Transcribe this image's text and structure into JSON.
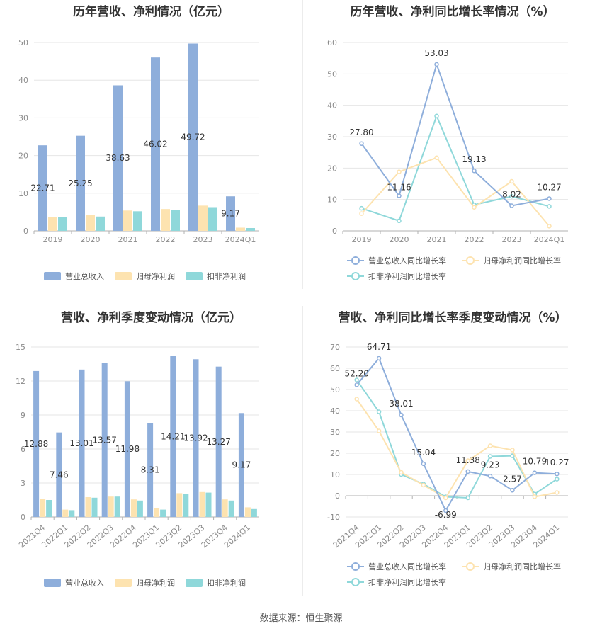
{
  "colors": {
    "revenue": "#8eaedb",
    "net_profit": "#fde3b0",
    "deducted": "#8fd8da",
    "revenue_line": "#8eaedb",
    "grid": "#e6e6e6",
    "axis": "#b0b0b0"
  },
  "source_text": "数据来源：恒生聚源",
  "chart_data": [
    {
      "type": "bar",
      "title": "历年营收、净利情况（亿元）",
      "categories": [
        "2019",
        "2020",
        "2021",
        "2022",
        "2023",
        "2024Q1"
      ],
      "ylim": [
        0,
        50
      ],
      "yticks": [
        "0",
        "10",
        "20",
        "30",
        "40",
        "50"
      ],
      "series": [
        {
          "name": "营业总收入",
          "values": [
            22.71,
            25.25,
            38.63,
            46.02,
            49.72,
            9.17
          ]
        },
        {
          "name": "归母净利润",
          "values": [
            3.7,
            4.3,
            5.4,
            5.8,
            6.7,
            0.85
          ]
        },
        {
          "name": "扣非净利润",
          "values": [
            3.7,
            3.8,
            5.2,
            5.6,
            6.3,
            0.75
          ]
        }
      ],
      "data_labels": [
        "22.71",
        "25.25",
        "38.63",
        "46.02",
        "49.72",
        "9.17"
      ],
      "legend": "bottom"
    },
    {
      "type": "line",
      "title": "历年营收、净利同比增长率情况（%）",
      "categories": [
        "2019",
        "2020",
        "2021",
        "2022",
        "2023",
        "2024Q1"
      ],
      "ylim": [
        0,
        60
      ],
      "yticks": [
        "0",
        "10",
        "20",
        "30",
        "40",
        "50",
        "60"
      ],
      "series": [
        {
          "name": "营业总收入同比增长率",
          "values": [
            27.8,
            11.16,
            53.03,
            19.13,
            8.02,
            10.27
          ]
        },
        {
          "name": "归母净利润同比增长率",
          "values": [
            5.5,
            18.8,
            23.3,
            7.5,
            15.8,
            1.5
          ]
        },
        {
          "name": "扣非净利润同比增长率",
          "values": [
            7.2,
            3.2,
            36.6,
            8.3,
            11.0,
            7.8
          ]
        }
      ],
      "data_labels": [
        "27.80",
        "11.16",
        "53.03",
        "19.13",
        "8.02",
        "10.27"
      ],
      "legend": "bottom"
    },
    {
      "type": "bar",
      "title": "营收、净利季度变动情况（亿元）",
      "categories": [
        "2021Q4",
        "2022Q1",
        "2022Q2",
        "2022Q3",
        "2022Q4",
        "2023Q1",
        "2023Q2",
        "2023Q3",
        "2023Q4",
        "2024Q1"
      ],
      "ylim": [
        0,
        15
      ],
      "yticks": [
        "0",
        "3",
        "6",
        "9",
        "12",
        "15"
      ],
      "series": [
        {
          "name": "营业总收入",
          "values": [
            12.88,
            7.46,
            13.01,
            13.57,
            11.98,
            8.31,
            14.21,
            13.92,
            13.27,
            9.17
          ]
        },
        {
          "name": "归母净利润",
          "values": [
            1.6,
            0.65,
            1.75,
            1.8,
            1.55,
            0.8,
            2.1,
            2.2,
            1.55,
            0.85
          ]
        },
        {
          "name": "扣非净利润",
          "values": [
            1.5,
            0.6,
            1.7,
            1.8,
            1.45,
            0.65,
            2.05,
            2.15,
            1.45,
            0.7
          ]
        }
      ],
      "data_labels": [
        "12.88",
        "7.46",
        "13.01",
        "13.57",
        "11.98",
        "8.31",
        "14.21",
        "13.92",
        "13.27",
        "9.17"
      ],
      "legend": "bottom"
    },
    {
      "type": "line",
      "title": "营收、净利同比增长率季度变动情况（%）",
      "categories": [
        "2021Q4",
        "2022Q1",
        "2022Q2",
        "2022Q3",
        "2022Q4",
        "2023Q1",
        "2023Q2",
        "2023Q3",
        "2023Q4",
        "2024Q1"
      ],
      "ylim": [
        -10,
        70
      ],
      "yticks": [
        "-10",
        "0",
        "10",
        "20",
        "30",
        "40",
        "50",
        "60",
        "70"
      ],
      "series": [
        {
          "name": "营业总收入同比增长率",
          "values": [
            52.2,
            64.71,
            38.01,
            15.04,
            -6.99,
            11.38,
            9.23,
            2.57,
            10.79,
            10.27
          ]
        },
        {
          "name": "归母净利润同比增长率",
          "values": [
            45.5,
            30.5,
            11.0,
            5.0,
            -1.0,
            16.5,
            23.5,
            21.5,
            -0.5,
            1.5
          ]
        },
        {
          "name": "扣非净利润同比增长率",
          "values": [
            54.5,
            39.5,
            10.0,
            5.5,
            -0.5,
            -1.0,
            18.5,
            18.8,
            0.8,
            7.8
          ]
        }
      ],
      "data_labels": [
        "52.20",
        "64.71",
        "38.01",
        "15.04",
        "-6.99",
        "11.38",
        "9.23",
        "2.57",
        "10.79",
        "10.27"
      ],
      "legend": "bottom"
    }
  ]
}
